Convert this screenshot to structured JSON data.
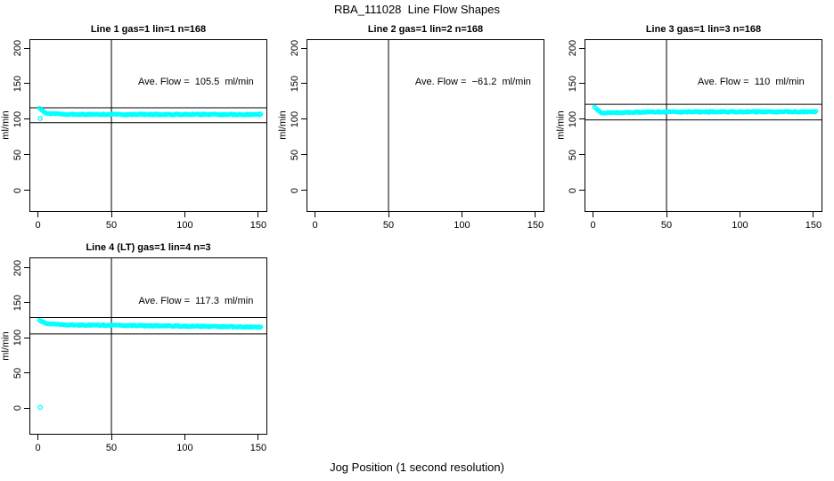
{
  "figure": {
    "title": "RBA_111028  Line Flow Shapes",
    "xlabel": "Jog Position (1 second resolution)",
    "background_color": "#ffffff",
    "point_color": "#00ffff",
    "line_color": "#000000"
  },
  "chart_data": [
    {
      "type": "scatter",
      "title": "Line 1 gas=1 lin=1 n=168",
      "gas": 1,
      "lin": 1,
      "n": 168,
      "annotation": "Ave. Flow =  105.5  ml/min",
      "ave_flow_ml_min": 105.5,
      "ylabel": "ml/min",
      "x_ticks": [
        0,
        50,
        100,
        150
      ],
      "y_ticks": [
        0,
        50,
        100,
        150,
        200
      ],
      "xlim": [
        -6,
        156
      ],
      "ylim": [
        -15,
        215
      ],
      "vline_x": 50,
      "hlines_y": [
        116.1,
        95.0
      ],
      "marker": "open-circle",
      "marker_color": "#00ffff",
      "grid": false,
      "legend": false,
      "points": {
        "x": [
          1,
          2,
          3,
          4,
          5,
          6,
          8,
          10,
          12,
          15,
          20,
          25,
          30,
          40,
          50,
          60,
          70,
          80,
          90,
          100,
          110,
          120,
          130,
          140,
          150,
          152
        ],
        "y": [
          115,
          113.5,
          112,
          110.5,
          109.5,
          108.8,
          108,
          107.5,
          107.2,
          107,
          106.8,
          106.8,
          106.8,
          106.7,
          106.8,
          106.6,
          106.8,
          106.7,
          106.6,
          106.8,
          106.7,
          106.8,
          106.6,
          106.7,
          106.8,
          106.8
        ]
      },
      "outliers": [
        [
          1.5,
          101
        ]
      ]
    },
    {
      "type": "scatter",
      "title": "Line 2 gas=1 lin=2 n=168",
      "gas": 1,
      "lin": 2,
      "n": 168,
      "annotation": "Ave. Flow =  −61.2  ml/min",
      "ave_flow_ml_min": -61.2,
      "ylabel": "ml/min",
      "x_ticks": [
        0,
        50,
        100,
        150
      ],
      "y_ticks": [
        0,
        50,
        100,
        150,
        200
      ],
      "xlim": [
        -6,
        156
      ],
      "ylim": [
        -15,
        215
      ],
      "vline_x": 50,
      "hlines_y": [],
      "marker": "open-circle",
      "marker_color": "#00ffff",
      "grid": false,
      "legend": false,
      "points": {
        "x": [],
        "y": []
      },
      "outliers": []
    },
    {
      "type": "scatter",
      "title": "Line 3 gas=1 lin=3 n=168",
      "gas": 1,
      "lin": 3,
      "n": 168,
      "annotation": "Ave. Flow =  110  ml/min",
      "ave_flow_ml_min": 110,
      "ylabel": "ml/min",
      "x_ticks": [
        0,
        50,
        100,
        150
      ],
      "y_ticks": [
        0,
        50,
        100,
        150,
        200
      ],
      "xlim": [
        -6,
        156
      ],
      "ylim": [
        -15,
        215
      ],
      "vline_x": 50,
      "hlines_y": [
        121.0,
        99.0
      ],
      "marker": "open-circle",
      "marker_color": "#00ffff",
      "grid": false,
      "legend": false,
      "points": {
        "x": [
          1,
          2,
          3,
          4,
          5,
          6,
          8,
          10,
          12,
          15,
          20,
          25,
          30,
          40,
          50,
          60,
          70,
          80,
          90,
          100,
          110,
          120,
          130,
          140,
          150,
          152
        ],
        "y": [
          116.5,
          115,
          113,
          111.5,
          110.2,
          109.4,
          108.8,
          108.6,
          108.7,
          109,
          109.5,
          109.8,
          110,
          110.2,
          110.3,
          110.4,
          110.4,
          110.5,
          110.5,
          110.5,
          110.6,
          110.5,
          110.6,
          110.6,
          110.7,
          110.7
        ]
      },
      "outliers": []
    },
    {
      "type": "scatter",
      "title": "Line 4 (LT) gas=1 lin=4 n=3",
      "gas": 1,
      "lin": 4,
      "n": 3,
      "annotation": "Ave. Flow =  117.3  ml/min",
      "ave_flow_ml_min": 117.3,
      "ylabel": "ml/min",
      "x_ticks": [
        0,
        50,
        100,
        150
      ],
      "y_ticks": [
        0,
        50,
        100,
        150,
        200
      ],
      "xlim": [
        -6,
        156
      ],
      "ylim": [
        -15,
        215
      ],
      "vline_x": 50,
      "hlines_y": [
        129.0,
        105.6
      ],
      "marker": "open-circle",
      "marker_color": "#00ffff",
      "grid": false,
      "legend": false,
      "points": {
        "x": [
          1,
          2,
          3,
          4,
          5,
          6,
          8,
          10,
          12,
          15,
          20,
          25,
          30,
          40,
          50,
          60,
          70,
          80,
          90,
          100,
          110,
          120,
          130,
          140,
          148,
          152
        ],
        "y": [
          124.5,
          123.8,
          123,
          122.2,
          121.5,
          120.8,
          120,
          119.4,
          119,
          118.8,
          118.6,
          118.5,
          118.3,
          118.2,
          118,
          117.8,
          117.5,
          117.3,
          117.1,
          116.8,
          116.5,
          116.3,
          116,
          115.8,
          115.5,
          115.3
        ]
      },
      "outliers": [
        [
          1.5,
          1
        ]
      ]
    }
  ]
}
